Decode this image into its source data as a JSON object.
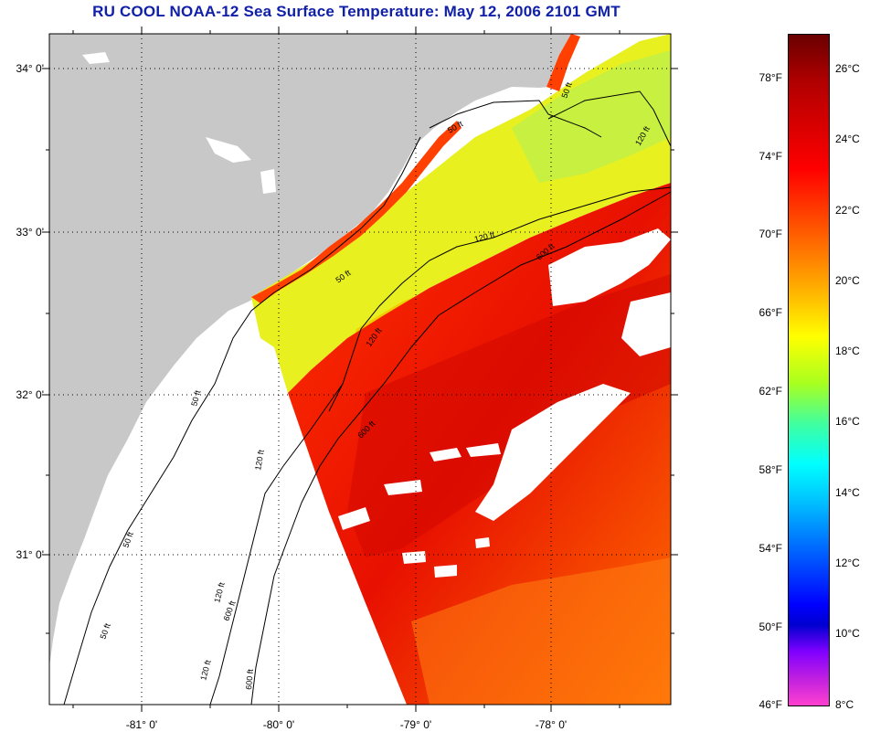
{
  "title": "RU COOL  NOAA-12  Sea Surface Temperature:  May 12, 2006 2101 GMT",
  "colors": {
    "land": "#c8c8c8",
    "title": "#1020a8",
    "gridline": "#000000"
  },
  "latitude_labels": [
    "34° 0'",
    "33° 0'",
    "32° 0'",
    "31° 0'"
  ],
  "longitude_labels": [
    "-81° 0'",
    "-80° 0'",
    "-79° 0'",
    "-78° 0'"
  ],
  "isobath_labels": [
    "50 ft",
    "120 ft",
    "600 ft",
    "50 ft",
    "120 ft",
    "600 ft",
    "50 ft",
    "120 ft",
    "600 ft",
    "50 ft",
    "120 ft",
    "600 ft",
    "50 ft",
    "120 ft",
    "120 ft",
    "50 ft"
  ],
  "colorbar": {
    "fahrenheit_ticks": [
      "78°F",
      "74°F",
      "70°F",
      "66°F",
      "62°F",
      "58°F",
      "54°F",
      "50°F",
      "46°F"
    ],
    "celsius_ticks": [
      "26°C",
      "24°C",
      "22°C",
      "20°C",
      "18°C",
      "16°C",
      "14°C",
      "12°C",
      "10°C",
      "8°C"
    ]
  }
}
